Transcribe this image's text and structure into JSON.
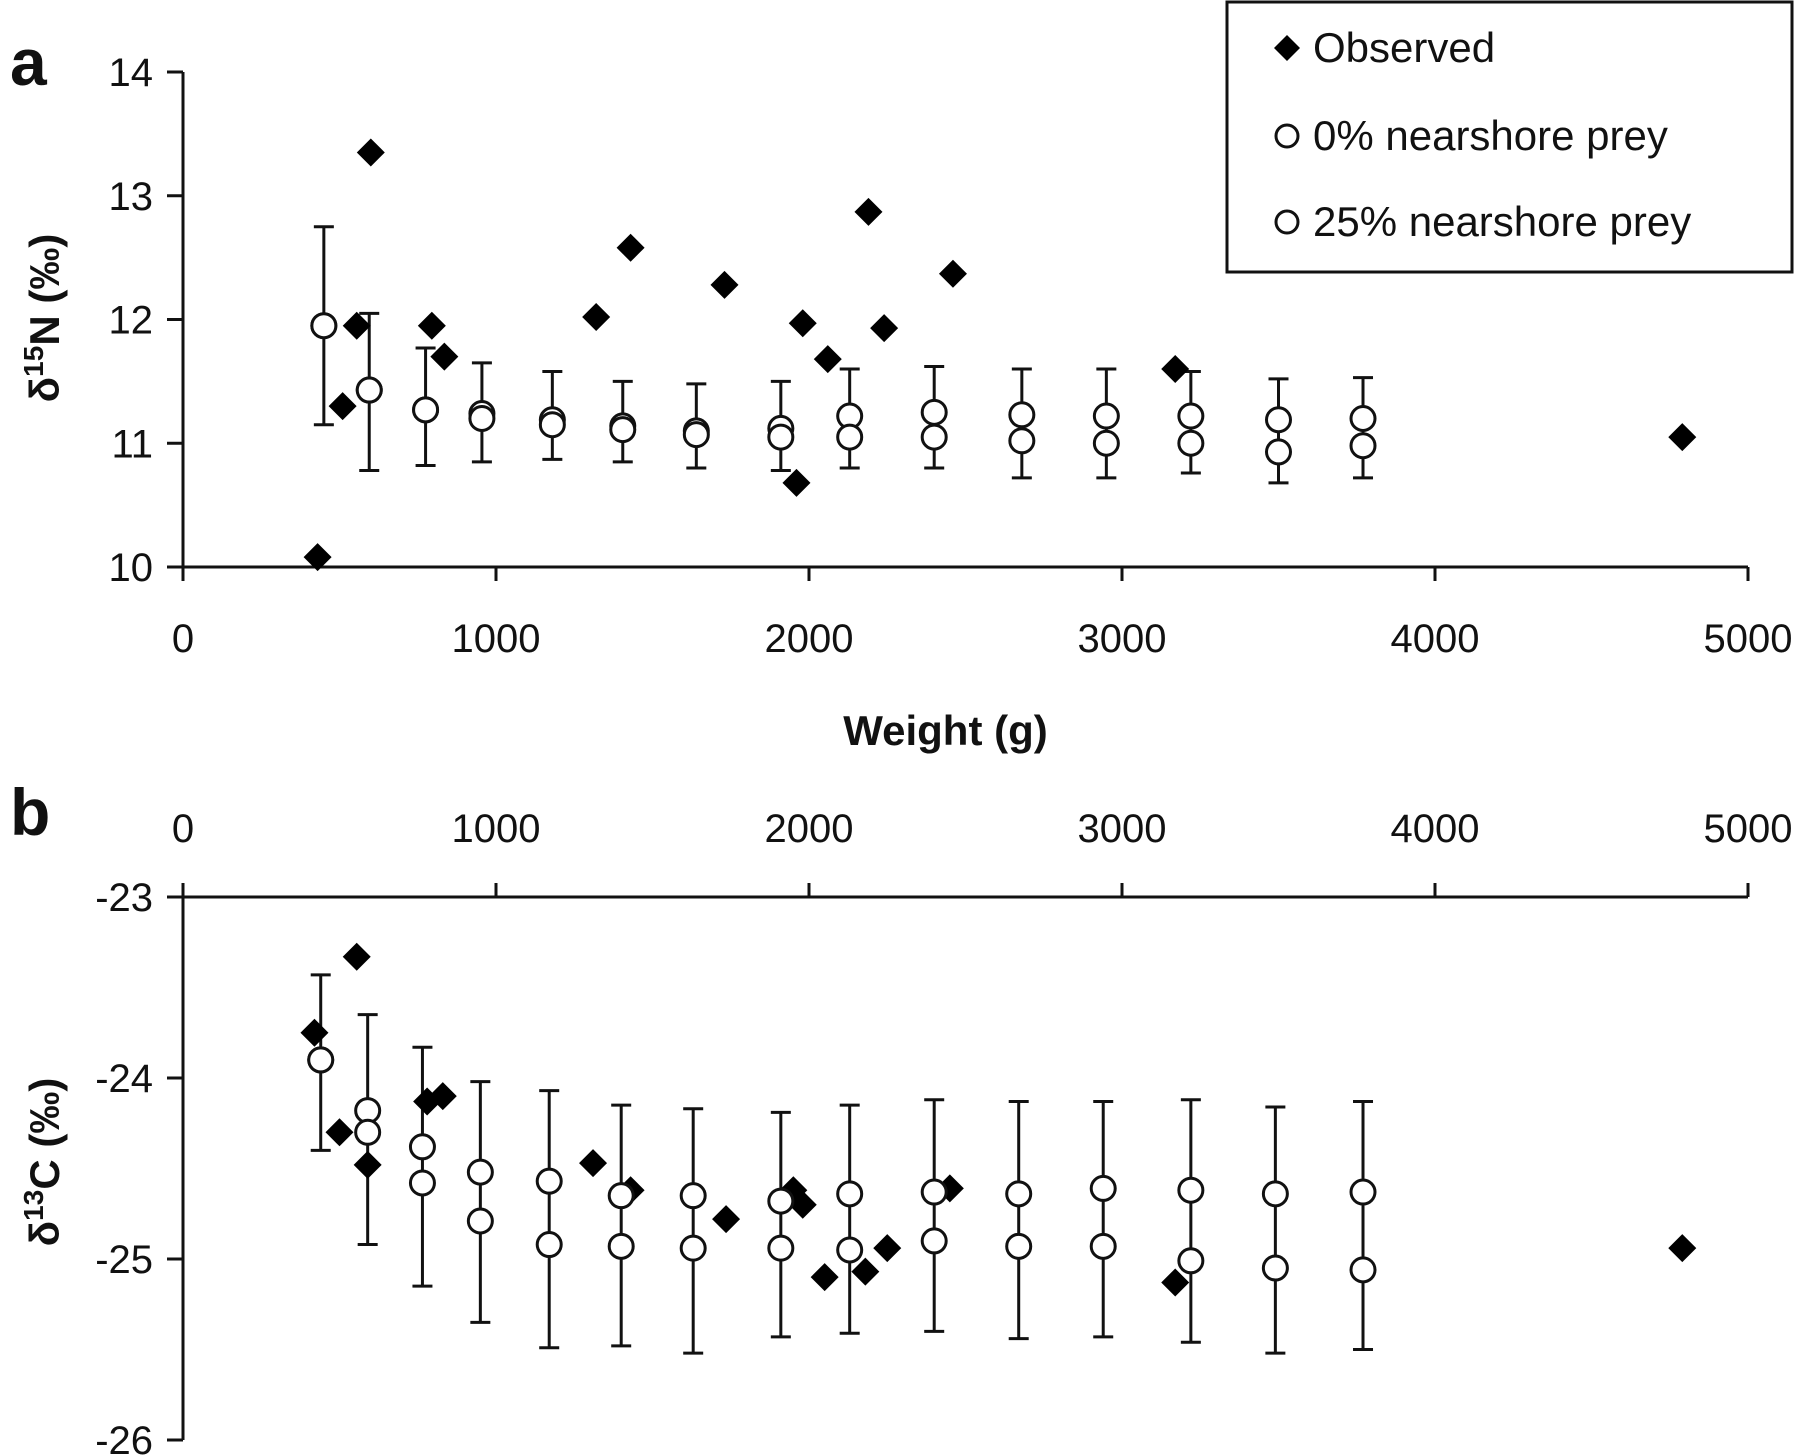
{
  "chart_data": [
    {
      "panel": "a",
      "type": "scatter",
      "xlabel": "Weight (g)",
      "ylabel": "δ15N (‰)",
      "ylabel_parts": {
        "delta": "δ",
        "sup": "15",
        "rest": "N (‰)"
      },
      "xlim": [
        0,
        5000
      ],
      "ylim": [
        10,
        14
      ],
      "x_ticks": [
        "0",
        "1000",
        "2000",
        "3000",
        "4000",
        "5000"
      ],
      "y_ticks": [
        "10",
        "11",
        "12",
        "13",
        "14"
      ],
      "grid": false,
      "legend": {
        "placement": "top-right",
        "entries": [
          {
            "marker": "diamond",
            "label": "Observed"
          },
          {
            "marker": "circle",
            "label": "0% nearshore prey"
          },
          {
            "marker": "circle",
            "label": "25% nearshore prey"
          }
        ]
      },
      "series": [
        {
          "name": "Observed",
          "marker": "diamond",
          "points": [
            {
              "x": 430,
              "y": 10.08
            },
            {
              "x": 510,
              "y": 11.3
            },
            {
              "x": 555,
              "y": 11.95
            },
            {
              "x": 600,
              "y": 13.35
            },
            {
              "x": 795,
              "y": 11.95
            },
            {
              "x": 835,
              "y": 11.7
            },
            {
              "x": 1320,
              "y": 12.02
            },
            {
              "x": 1430,
              "y": 12.58
            },
            {
              "x": 1730,
              "y": 12.28
            },
            {
              "x": 1960,
              "y": 10.68
            },
            {
              "x": 1980,
              "y": 11.97
            },
            {
              "x": 2060,
              "y": 11.68
            },
            {
              "x": 2190,
              "y": 12.87
            },
            {
              "x": 2240,
              "y": 11.93
            },
            {
              "x": 2460,
              "y": 12.37
            },
            {
              "x": 3170,
              "y": 11.6
            },
            {
              "x": 4790,
              "y": 11.05
            }
          ]
        },
        {
          "name": "0% nearshore prey",
          "marker": "circle",
          "points": [
            {
              "x": 450,
              "y": 11.95,
              "err_hi": 12.75,
              "err_lo": 11.15
            },
            {
              "x": 595,
              "y": 11.43,
              "err_hi": 12.05,
              "err_lo": 10.78
            },
            {
              "x": 775,
              "y": 11.27,
              "err_hi": 11.77,
              "err_lo": 10.82
            },
            {
              "x": 955,
              "y": 11.24,
              "err_hi": 11.65,
              "err_lo": 10.85
            },
            {
              "x": 1180,
              "y": 11.19,
              "err_hi": 11.58,
              "err_lo": 10.87
            },
            {
              "x": 1405,
              "y": 11.14,
              "err_hi": 11.5,
              "err_lo": 10.85
            },
            {
              "x": 1640,
              "y": 11.1,
              "err_hi": 11.48,
              "err_lo": 10.8
            },
            {
              "x": 1910,
              "y": 11.12,
              "err_hi": 11.5,
              "err_lo": 10.78
            },
            {
              "x": 2130,
              "y": 11.22,
              "err_hi": 11.6,
              "err_lo": 10.8
            },
            {
              "x": 2400,
              "y": 11.25,
              "err_hi": 11.62,
              "err_lo": 10.8
            },
            {
              "x": 2680,
              "y": 11.23,
              "err_hi": 11.6,
              "err_lo": 10.72
            },
            {
              "x": 2950,
              "y": 11.22,
              "err_hi": 11.6,
              "err_lo": 10.72
            },
            {
              "x": 3220,
              "y": 11.22,
              "err_hi": 11.58,
              "err_lo": 10.76
            },
            {
              "x": 3500,
              "y": 11.19,
              "err_hi": 11.52,
              "err_lo": 10.68
            },
            {
              "x": 3770,
              "y": 11.2,
              "err_hi": 11.53,
              "err_lo": 10.72
            }
          ]
        },
        {
          "name": "25% nearshore prey",
          "marker": "circle",
          "points": [
            {
              "x": 450,
              "y": 11.95
            },
            {
              "x": 595,
              "y": 11.43
            },
            {
              "x": 775,
              "y": 11.27
            },
            {
              "x": 955,
              "y": 11.2
            },
            {
              "x": 1180,
              "y": 11.15
            },
            {
              "x": 1405,
              "y": 11.11
            },
            {
              "x": 1640,
              "y": 11.07
            },
            {
              "x": 1910,
              "y": 11.05
            },
            {
              "x": 2130,
              "y": 11.05
            },
            {
              "x": 2400,
              "y": 11.05
            },
            {
              "x": 2680,
              "y": 11.02
            },
            {
              "x": 2950,
              "y": 11.0
            },
            {
              "x": 3220,
              "y": 11.0
            },
            {
              "x": 3500,
              "y": 10.93
            },
            {
              "x": 3770,
              "y": 10.98
            }
          ]
        }
      ]
    },
    {
      "panel": "b",
      "type": "scatter",
      "xlabel": "",
      "ylabel": "δ13C (‰)",
      "ylabel_parts": {
        "delta": "δ",
        "sup": "13",
        "rest": "C (‰)"
      },
      "xlim": [
        0,
        5000
      ],
      "ylim": [
        -26,
        -23
      ],
      "x_axis_position": "top",
      "x_ticks": [
        "0",
        "1000",
        "2000",
        "3000",
        "4000",
        "5000"
      ],
      "y_ticks": [
        "-23",
        "-24",
        "-25",
        "-26"
      ],
      "grid": false,
      "series": [
        {
          "name": "Observed",
          "marker": "diamond",
          "points": [
            {
              "x": 420,
              "y": -23.75
            },
            {
              "x": 500,
              "y": -24.3
            },
            {
              "x": 555,
              "y": -23.33
            },
            {
              "x": 590,
              "y": -24.48
            },
            {
              "x": 780,
              "y": -24.13
            },
            {
              "x": 830,
              "y": -24.1
            },
            {
              "x": 1310,
              "y": -24.47
            },
            {
              "x": 1430,
              "y": -24.62
            },
            {
              "x": 1735,
              "y": -24.78
            },
            {
              "x": 1950,
              "y": -24.62
            },
            {
              "x": 1980,
              "y": -24.7
            },
            {
              "x": 2050,
              "y": -25.1
            },
            {
              "x": 2180,
              "y": -25.07
            },
            {
              "x": 2250,
              "y": -24.94
            },
            {
              "x": 2450,
              "y": -24.61
            },
            {
              "x": 3170,
              "y": -25.13
            },
            {
              "x": 4790,
              "y": -24.94
            }
          ]
        },
        {
          "name": "0% nearshore prey",
          "marker": "circle",
          "points": [
            {
              "x": 440,
              "y": -23.9,
              "err_hi": -23.43,
              "err_lo": -24.4
            },
            {
              "x": 590,
              "y": -24.18,
              "err_hi": -23.65,
              "err_lo": -24.92
            },
            {
              "x": 765,
              "y": -24.38,
              "err_hi": -23.83,
              "err_lo": -25.15
            },
            {
              "x": 950,
              "y": -24.52,
              "err_hi": -24.02,
              "err_lo": -25.35
            },
            {
              "x": 1170,
              "y": -24.57,
              "err_hi": -24.07,
              "err_lo": -25.49
            },
            {
              "x": 1400,
              "y": -24.65,
              "err_hi": -24.15,
              "err_lo": -25.48
            },
            {
              "x": 1630,
              "y": -24.65,
              "err_hi": -24.17,
              "err_lo": -25.52
            },
            {
              "x": 1910,
              "y": -24.68,
              "err_hi": -24.19,
              "err_lo": -25.43
            },
            {
              "x": 2130,
              "y": -24.64,
              "err_hi": -24.15,
              "err_lo": -25.41
            },
            {
              "x": 2400,
              "y": -24.63,
              "err_hi": -24.12,
              "err_lo": -25.4
            },
            {
              "x": 2670,
              "y": -24.64,
              "err_hi": -24.13,
              "err_lo": -25.44
            },
            {
              "x": 2940,
              "y": -24.61,
              "err_hi": -24.13,
              "err_lo": -25.43
            },
            {
              "x": 3220,
              "y": -24.62,
              "err_hi": -24.12,
              "err_lo": -25.46
            },
            {
              "x": 3490,
              "y": -24.64,
              "err_hi": -24.16,
              "err_lo": -25.52
            },
            {
              "x": 3770,
              "y": -24.63,
              "err_hi": -24.13,
              "err_lo": -25.5
            }
          ]
        },
        {
          "name": "25% nearshore prey",
          "marker": "circle",
          "points": [
            {
              "x": 440,
              "y": -23.9
            },
            {
              "x": 590,
              "y": -24.3
            },
            {
              "x": 765,
              "y": -24.58
            },
            {
              "x": 950,
              "y": -24.79
            },
            {
              "x": 1170,
              "y": -24.92
            },
            {
              "x": 1400,
              "y": -24.93
            },
            {
              "x": 1630,
              "y": -24.94
            },
            {
              "x": 1910,
              "y": -24.94
            },
            {
              "x": 2130,
              "y": -24.95
            },
            {
              "x": 2400,
              "y": -24.9
            },
            {
              "x": 2670,
              "y": -24.93
            },
            {
              "x": 2940,
              "y": -24.93
            },
            {
              "x": 3220,
              "y": -25.01
            },
            {
              "x": 3490,
              "y": -25.05
            },
            {
              "x": 3770,
              "y": -25.06
            }
          ]
        }
      ]
    }
  ]
}
